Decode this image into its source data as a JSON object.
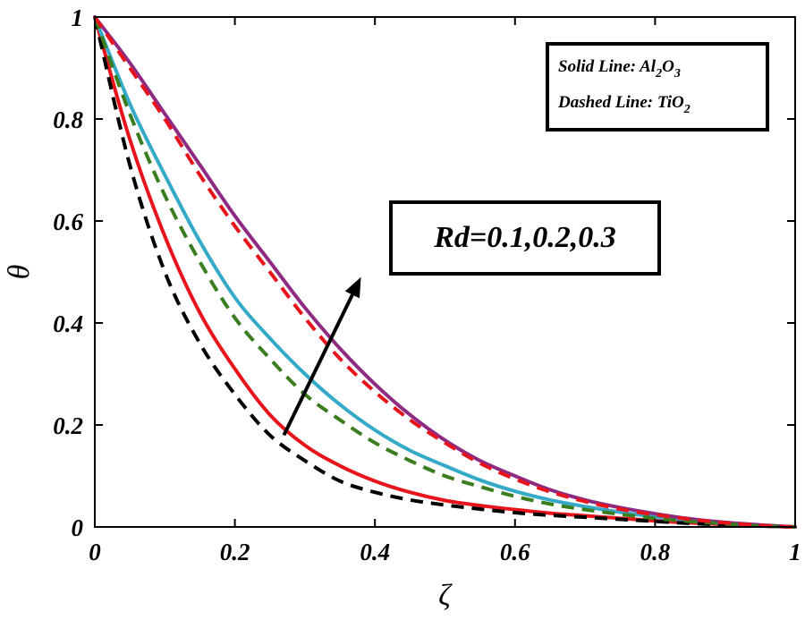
{
  "chart_data": {
    "type": "line",
    "title": "",
    "xlabel": "ζ",
    "ylabel": "θ",
    "xlim": [
      0,
      1
    ],
    "ylim": [
      0,
      1
    ],
    "x_ticks": [
      0,
      0.2,
      0.4,
      0.6,
      0.8,
      1
    ],
    "x_tick_labels": [
      "0",
      "0.2",
      "0.4",
      "0.6",
      "0.8",
      "1"
    ],
    "y_ticks": [
      0,
      0.2,
      0.4,
      0.6,
      0.8,
      1
    ],
    "y_tick_labels": [
      "0",
      "0.2",
      "0.4",
      "0.6",
      "0.8",
      "1"
    ],
    "grid": false,
    "x": [
      0,
      0.05,
      0.1,
      0.15,
      0.2,
      0.25,
      0.3,
      0.35,
      0.4,
      0.45,
      0.5,
      0.55,
      0.6,
      0.65,
      0.7,
      0.75,
      0.8,
      0.85,
      0.9,
      0.95,
      1
    ],
    "series": [
      {
        "name": "Al2O3, Rd=0.1",
        "style": "solid",
        "color": "#e8141c",
        "values": [
          1,
          0.76,
          0.57,
          0.42,
          0.31,
          0.22,
          0.16,
          0.12,
          0.09,
          0.068,
          0.052,
          0.042,
          0.034,
          0.027,
          0.022,
          0.017,
          0.012,
          0.008,
          0.005,
          0.002,
          0
        ]
      },
      {
        "name": "Al2O3, Rd=0.2",
        "style": "solid",
        "color": "#35aac8",
        "values": [
          1,
          0.83,
          0.69,
          0.56,
          0.45,
          0.37,
          0.3,
          0.24,
          0.19,
          0.15,
          0.12,
          0.092,
          0.07,
          0.053,
          0.04,
          0.029,
          0.02,
          0.013,
          0.007,
          0.003,
          0
        ]
      },
      {
        "name": "Al2O3, Rd=0.3",
        "style": "solid",
        "color": "#8f2a83",
        "values": [
          1,
          0.91,
          0.81,
          0.71,
          0.61,
          0.52,
          0.43,
          0.35,
          0.28,
          0.22,
          0.17,
          0.13,
          0.1,
          0.073,
          0.053,
          0.038,
          0.026,
          0.016,
          0.009,
          0.004,
          0
        ]
      },
      {
        "name": "TiO2, Rd=0.1",
        "style": "dashed",
        "color": "#000000",
        "values": [
          1,
          0.71,
          0.5,
          0.36,
          0.26,
          0.18,
          0.13,
          0.09,
          0.068,
          0.053,
          0.043,
          0.035,
          0.028,
          0.023,
          0.019,
          0.015,
          0.011,
          0.007,
          0.004,
          0.002,
          0
        ]
      },
      {
        "name": "TiO2, Rd=0.2",
        "style": "dashed",
        "color": "#3a7d1f",
        "values": [
          1,
          0.81,
          0.65,
          0.52,
          0.41,
          0.33,
          0.26,
          0.21,
          0.165,
          0.13,
          0.1,
          0.079,
          0.06,
          0.045,
          0.034,
          0.025,
          0.017,
          0.011,
          0.006,
          0.002,
          0
        ]
      },
      {
        "name": "TiO2, Rd=0.3",
        "style": "dashed",
        "color": "#e8141c",
        "values": [
          1,
          0.9,
          0.8,
          0.69,
          0.59,
          0.5,
          0.41,
          0.33,
          0.265,
          0.21,
          0.165,
          0.125,
          0.094,
          0.069,
          0.05,
          0.035,
          0.024,
          0.015,
          0.008,
          0.003,
          0
        ]
      }
    ],
    "legend": {
      "position": "top-right",
      "line1_prefix": "Solid Line: Al",
      "line1_sub1": "2",
      "line1_mid": "O",
      "line1_sub2": "3",
      "line2_prefix": "Dashed Line: TiO",
      "line2_sub": "2"
    },
    "annotation": {
      "text": "Rd=0.1,0.2,0.3",
      "arrow_from": [
        0.27,
        0.18
      ],
      "arrow_to": [
        0.38,
        0.49
      ]
    }
  }
}
